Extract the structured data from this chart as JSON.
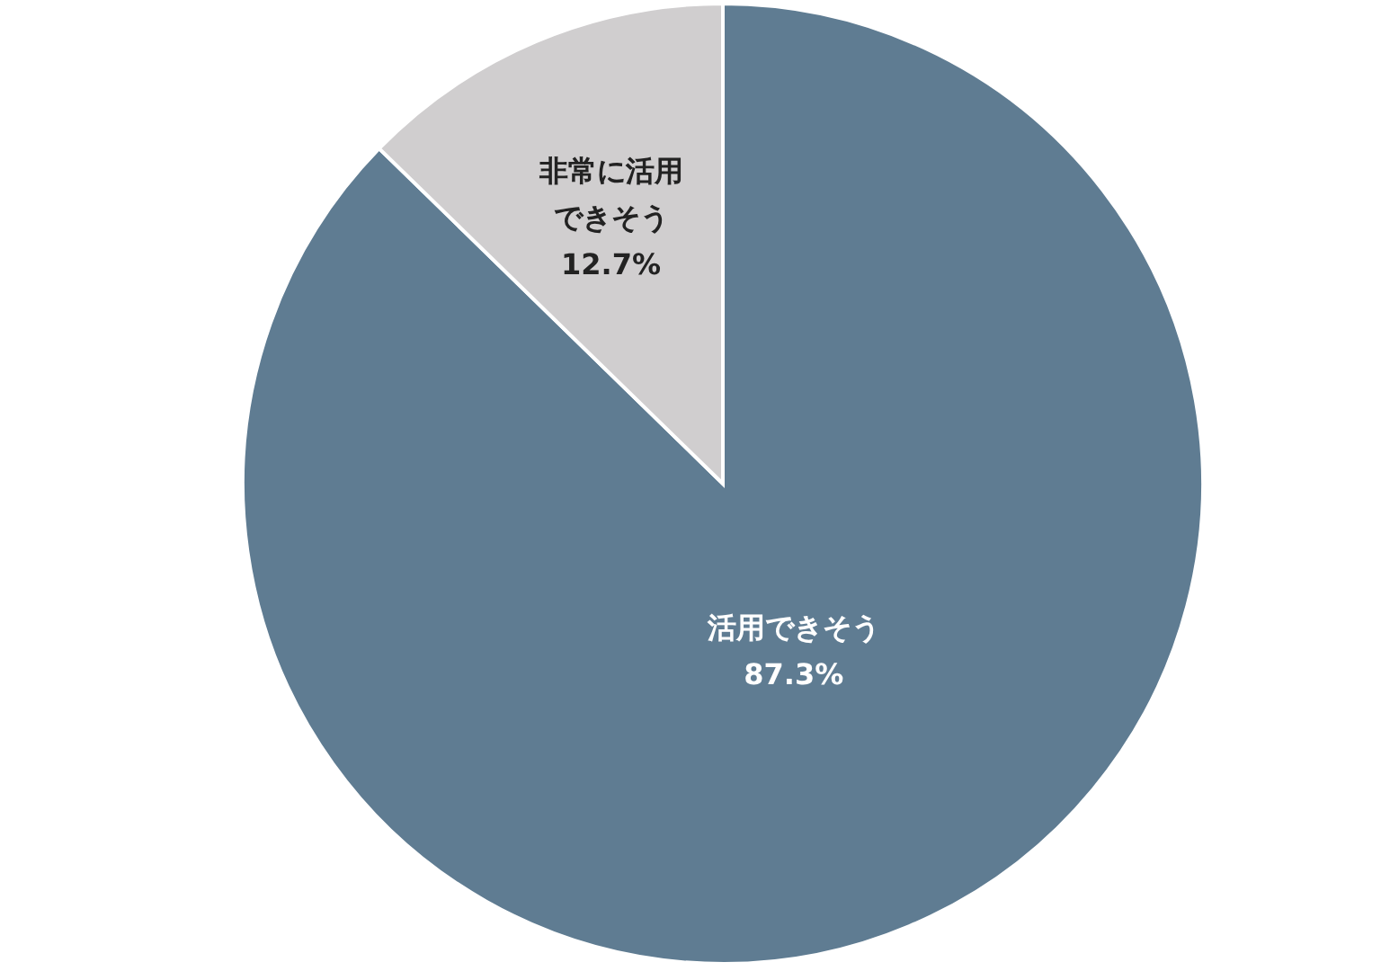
{
  "chart_data": {
    "type": "pie",
    "categories": [
      "活用できそう",
      "非常に活用できそう"
    ],
    "values": [
      87.3,
      12.7
    ],
    "value_labels": [
      "87.3%",
      "12.7%"
    ],
    "colors": [
      "#5f7c92",
      "#d0cecf"
    ]
  }
}
